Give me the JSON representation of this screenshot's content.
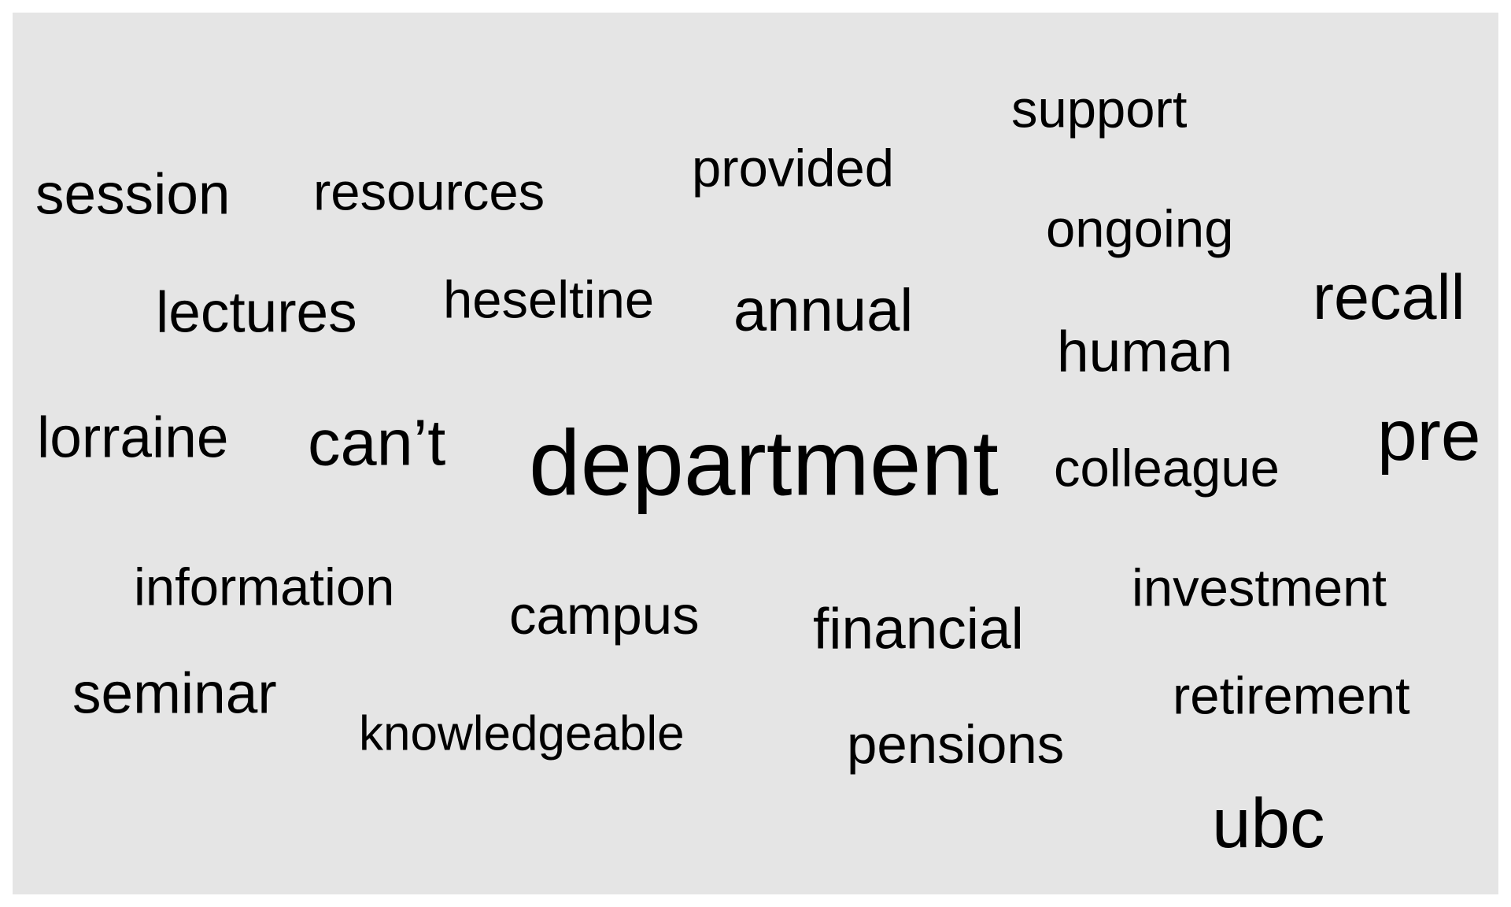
{
  "words": [
    {
      "text": "support",
      "weight": 3
    },
    {
      "text": "provided",
      "weight": 3
    },
    {
      "text": "session",
      "weight": 4
    },
    {
      "text": "resources",
      "weight": 3
    },
    {
      "text": "ongoing",
      "weight": 3
    },
    {
      "text": "recall",
      "weight": 5
    },
    {
      "text": "lectures",
      "weight": 4
    },
    {
      "text": "heseltine",
      "weight": 3
    },
    {
      "text": "annual",
      "weight": 4
    },
    {
      "text": "human",
      "weight": 4
    },
    {
      "text": "lorraine",
      "weight": 4
    },
    {
      "text": "can’t",
      "weight": 5
    },
    {
      "text": "department",
      "weight": 10
    },
    {
      "text": "colleague",
      "weight": 3
    },
    {
      "text": "pre",
      "weight": 6
    },
    {
      "text": "information",
      "weight": 3
    },
    {
      "text": "campus",
      "weight": 3
    },
    {
      "text": "financial",
      "weight": 4
    },
    {
      "text": "investment",
      "weight": 3
    },
    {
      "text": "seminar",
      "weight": 4
    },
    {
      "text": "retirement",
      "weight": 3
    },
    {
      "text": "knowledgeable",
      "weight": 2
    },
    {
      "text": "pensions",
      "weight": 3
    },
    {
      "text": "ubc",
      "weight": 6
    }
  ],
  "colors": {
    "background": "#e5e5e5",
    "text": "#000000"
  }
}
